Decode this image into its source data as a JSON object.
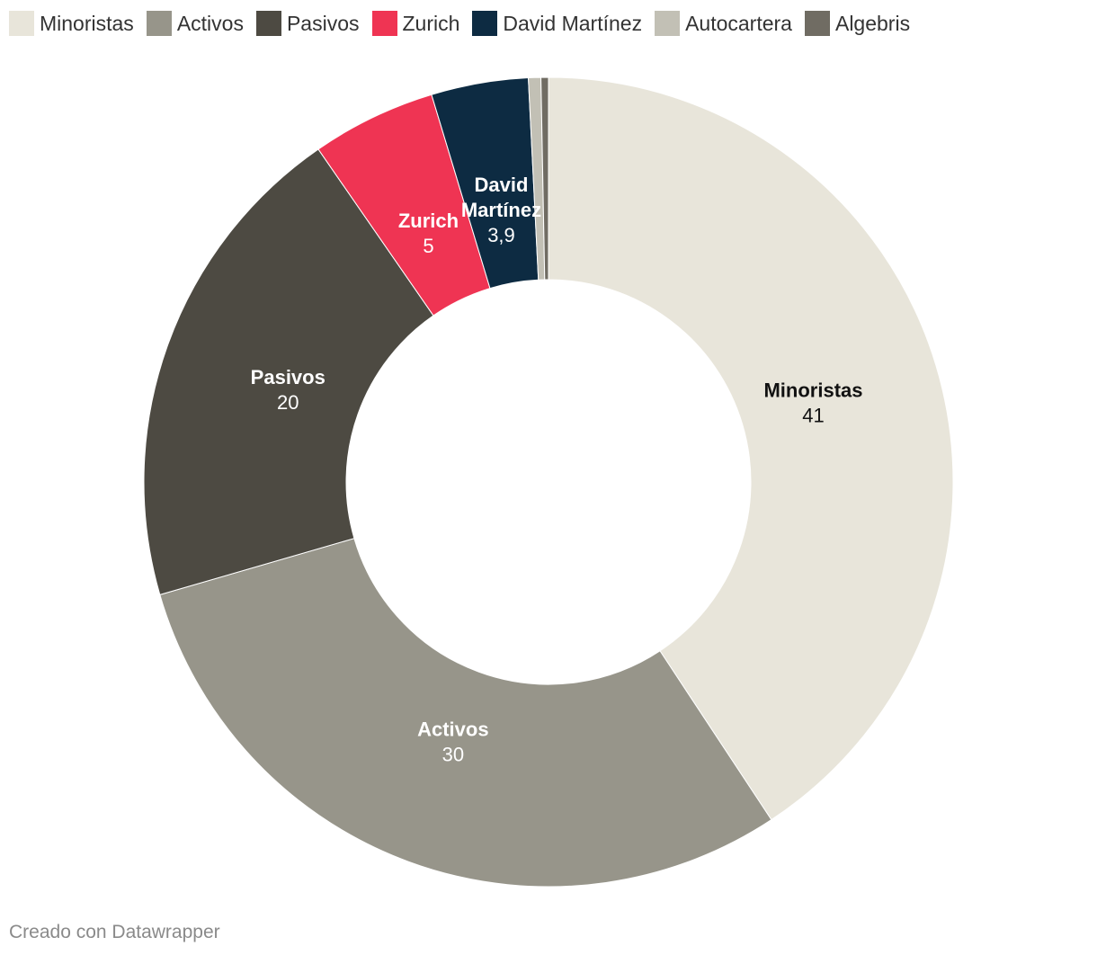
{
  "chart_data": {
    "type": "pie",
    "variant": "donut",
    "slices": [
      {
        "key": "minoristas",
        "label": "Minoristas",
        "value": 41,
        "display": "41",
        "color": "#e8e5da",
        "label_color": "#111111",
        "label_lines": [
          "Minoristas"
        ]
      },
      {
        "key": "activos",
        "label": "Activos",
        "value": 30,
        "display": "30",
        "color": "#97958a",
        "label_color": "#ffffff",
        "label_lines": [
          "Activos"
        ]
      },
      {
        "key": "pasivos",
        "label": "Pasivos",
        "value": 20,
        "display": "20",
        "color": "#4d4a42",
        "label_color": "#ffffff",
        "label_lines": [
          "Pasivos"
        ]
      },
      {
        "key": "zurich",
        "label": "Zurich",
        "value": 5,
        "display": "5",
        "color": "#ef3453",
        "label_color": "#ffffff",
        "label_lines": [
          "Zurich"
        ]
      },
      {
        "key": "david-martinez",
        "label": "David Martínez",
        "value": 3.9,
        "display": "3,9",
        "color": "#0d2b42",
        "label_color": "#ffffff",
        "label_lines": [
          "David",
          "Martínez"
        ]
      },
      {
        "key": "autocartera",
        "label": "Autocartera",
        "value": 0.5,
        "display": null,
        "color": "#c2c0b5",
        "label_color": null,
        "label_lines": []
      },
      {
        "key": "algebris",
        "label": "Algebris",
        "value": 0.3,
        "display": null,
        "color": "#706c63",
        "label_color": null,
        "label_lines": []
      }
    ],
    "legend_position": "top-left"
  },
  "footer": {
    "credit": "Creado con Datawrapper"
  }
}
